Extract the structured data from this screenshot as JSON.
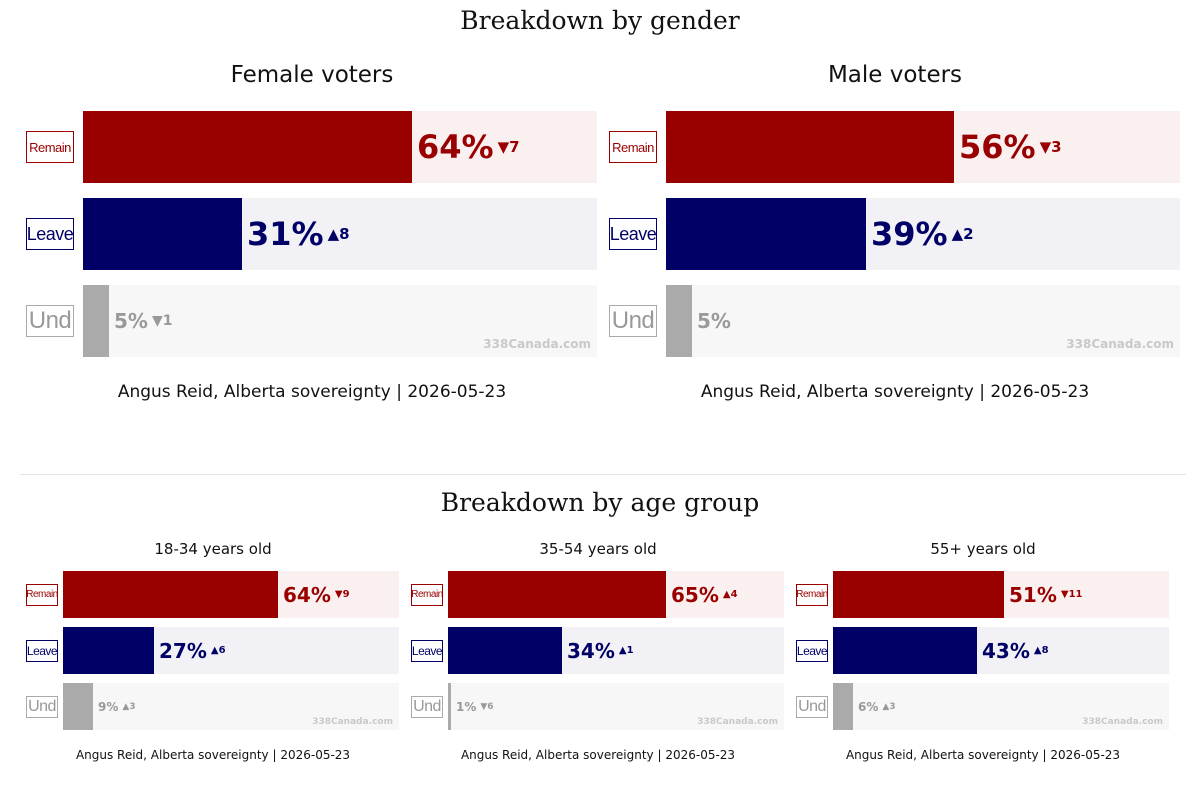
{
  "sections": {
    "gender_title": "Breakdown by gender",
    "age_title": "Breakdown by age group"
  },
  "colors": {
    "remain": "#990000",
    "leave": "#000066",
    "und": "#aaaaaa",
    "remain_bg": "#fbf0f0",
    "leave_bg": "#f1f1f6",
    "und_bg": "#f7f7f7",
    "und_text": "#999999"
  },
  "chart_data": [
    {
      "type": "bar",
      "group": "gender",
      "title": "Female voters",
      "categories": [
        "Remain",
        "Leave",
        "Und"
      ],
      "values": [
        64,
        31,
        5
      ],
      "change_labels": [
        "▼7",
        "▲8",
        "▼1"
      ],
      "watermark": "338Canada.com",
      "source": "Angus Reid, Alberta sovereignty | 2026-05-23",
      "xlim": [
        0,
        100
      ]
    },
    {
      "type": "bar",
      "group": "gender",
      "title": "Male voters",
      "categories": [
        "Remain",
        "Leave",
        "Und"
      ],
      "values": [
        56,
        39,
        5
      ],
      "change_labels": [
        "▼3",
        "▲2",
        ""
      ],
      "watermark": "338Canada.com",
      "source": "Angus Reid, Alberta sovereignty | 2026-05-23",
      "xlim": [
        0,
        100
      ]
    },
    {
      "type": "bar",
      "group": "age",
      "title": "18-34 years old",
      "categories": [
        "Remain",
        "Leave",
        "Und"
      ],
      "values": [
        64,
        27,
        9
      ],
      "change_labels": [
        "▼9",
        "▲6",
        "▲3"
      ],
      "watermark": "338Canada.com",
      "source": "Angus Reid, Alberta sovereignty | 2026-05-23",
      "xlim": [
        0,
        100
      ]
    },
    {
      "type": "bar",
      "group": "age",
      "title": "35-54 years old",
      "categories": [
        "Remain",
        "Leave",
        "Und"
      ],
      "values": [
        65,
        34,
        1
      ],
      "change_labels": [
        "▲4",
        "▲1",
        "▼6"
      ],
      "watermark": "338Canada.com",
      "source": "Angus Reid, Alberta sovereignty | 2026-05-23",
      "xlim": [
        0,
        100
      ]
    },
    {
      "type": "bar",
      "group": "age",
      "title": "55+ years old",
      "categories": [
        "Remain",
        "Leave",
        "Und"
      ],
      "values": [
        51,
        43,
        6
      ],
      "change_labels": [
        "▼11",
        "▲8",
        "▲3"
      ],
      "watermark": "338Canada.com",
      "source": "Angus Reid, Alberta sovereignty | 2026-05-23",
      "xlim": [
        0,
        100
      ]
    }
  ]
}
